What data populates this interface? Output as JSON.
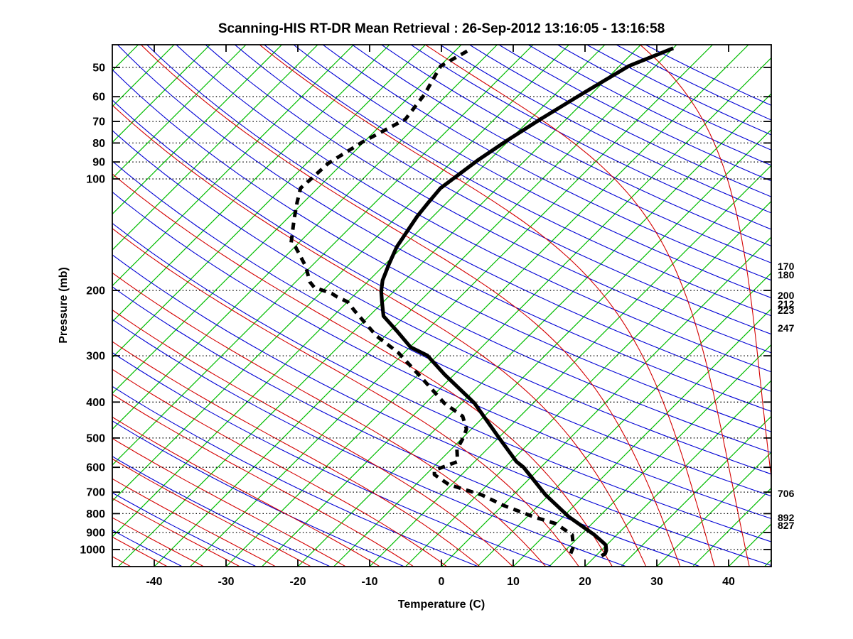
{
  "title": "Scanning-HIS RT-DR Mean Retrieval : 26-Sep-2012 13:16:05 - 13:16:58",
  "axes": {
    "x_label": "Temperature (C)",
    "y_label": "Pressure (mb)",
    "x_ticks": [
      -40,
      -30,
      -20,
      -10,
      0,
      10,
      20,
      30,
      40
    ],
    "y_ticks": [
      50,
      60,
      70,
      80,
      90,
      100,
      200,
      300,
      400,
      500,
      600,
      700,
      800,
      900,
      1000
    ],
    "x_range_c": [
      -45.8,
      45.9
    ],
    "p_range_mb": [
      43.5,
      1113
    ],
    "grid": "dotted-horizontal-isobars"
  },
  "right_pressure_labels": [
    {
      "text": "170",
      "y": 375
    },
    {
      "text": "180",
      "y": 387
    },
    {
      "text": "200",
      "y": 416
    },
    {
      "text": "212",
      "y": 428
    },
    {
      "text": "223",
      "y": 437
    },
    {
      "text": "247",
      "y": 462
    },
    {
      "text": "706",
      "y": 695
    },
    {
      "text": "892",
      "y": 729
    },
    {
      "text": "827",
      "y": 740
    }
  ],
  "colors": {
    "isotherm": "#00bc00",
    "dry_adiabat": "#0000d4",
    "moist_adiabat": "#d40000",
    "isobar": "#000000",
    "temperature_curve": "#000000",
    "dewpoint_curve": "#000000"
  },
  "chart_data": {
    "type": "line",
    "subtype": "skew-t-log-p-sounding",
    "title": "Scanning-HIS RT-DR Mean Retrieval : 26-Sep-2012 13:16:05 - 13:16:58",
    "xlabel": "Temperature (C)",
    "ylabel": "Pressure (mb)",
    "xlim_c": [
      -45.8,
      45.9
    ],
    "plim_mb": [
      43.5,
      1113
    ],
    "background": {
      "isotherms_c": {
        "from": -130,
        "to": 45,
        "step": 5,
        "skew_deg": 45
      },
      "dry_adiabats_theta_k": {
        "from": 230,
        "to": 560,
        "step": 10
      },
      "moist_adiabats_thetaw_c": {
        "from": -60,
        "to": 45,
        "step": 5
      },
      "isobars_mb": [
        50,
        60,
        70,
        80,
        90,
        100,
        200,
        300,
        400,
        500,
        600,
        700,
        800,
        900,
        1000
      ]
    },
    "series": [
      {
        "name": "temperature",
        "style": "solid",
        "points_p_t": [
          [
            44.4,
            -40.0
          ],
          [
            49.6,
            -43.7
          ],
          [
            59.2,
            -46.4
          ],
          [
            69,
            -48.6
          ],
          [
            78.9,
            -50.3
          ],
          [
            89.1,
            -51.6
          ],
          [
            99.1,
            -52.4
          ],
          [
            105.9,
            -52.9
          ],
          [
            115.6,
            -52.6
          ],
          [
            126.3,
            -52.2
          ],
          [
            139,
            -51.5
          ],
          [
            152.6,
            -50.8
          ],
          [
            169.6,
            -49.5
          ],
          [
            187.9,
            -48.1
          ],
          [
            200.8,
            -46.8
          ],
          [
            214.6,
            -45.2
          ],
          [
            234.5,
            -43.0
          ],
          [
            257.6,
            -39.0
          ],
          [
            284.4,
            -34.9
          ],
          [
            299.5,
            -31.4
          ],
          [
            337.4,
            -26.3
          ],
          [
            402.7,
            -18.2
          ],
          [
            502.5,
            -9.7
          ],
          [
            578.9,
            -4.2
          ],
          [
            600,
            -2.4
          ],
          [
            712,
            4.5
          ],
          [
            816,
            10.8
          ],
          [
            913,
            16.9
          ],
          [
            962,
            19.4
          ],
          [
            973,
            19.9
          ],
          [
            1005,
            20.7
          ],
          [
            1026,
            21.0
          ],
          [
            1040,
            20.8
          ]
        ]
      },
      {
        "name": "dewpoint",
        "style": "dashed",
        "points_p_t": [
          [
            45.2,
            -68.3
          ],
          [
            49.6,
            -69.9
          ],
          [
            59.2,
            -68.2
          ],
          [
            69,
            -67.4
          ],
          [
            79.5,
            -70.2
          ],
          [
            90.8,
            -72.0
          ],
          [
            99.1,
            -72.2
          ],
          [
            105.9,
            -72.4
          ],
          [
            115.6,
            -70.9
          ],
          [
            128.2,
            -69.0
          ],
          [
            148.6,
            -66.1
          ],
          [
            152.6,
            -64.9
          ],
          [
            172,
            -60.8
          ],
          [
            189.7,
            -58.0
          ],
          [
            196.4,
            -56.6
          ],
          [
            203.6,
            -53.4
          ],
          [
            208.2,
            -52.1
          ],
          [
            214.6,
            -50.0
          ],
          [
            227.3,
            -47.7
          ],
          [
            265.3,
            -41.2
          ],
          [
            294.6,
            -35.8
          ],
          [
            340,
            -29.6
          ],
          [
            387.7,
            -24.0
          ],
          [
            402.7,
            -22.4
          ],
          [
            436.9,
            -18.0
          ],
          [
            473,
            -15.7
          ],
          [
            500,
            -14.9
          ],
          [
            536.4,
            -14.2
          ],
          [
            578.9,
            -12.4
          ],
          [
            611,
            -14.4
          ],
          [
            628,
            -13.8
          ],
          [
            668,
            -10.4
          ],
          [
            712,
            -4.4
          ],
          [
            760,
            0.1
          ],
          [
            816,
            5.9
          ],
          [
            852,
            10.0
          ],
          [
            913,
            13.8
          ],
          [
            982,
            15.6
          ],
          [
            1026,
            16.2
          ],
          [
            1040,
            16.2
          ]
        ]
      }
    ]
  }
}
